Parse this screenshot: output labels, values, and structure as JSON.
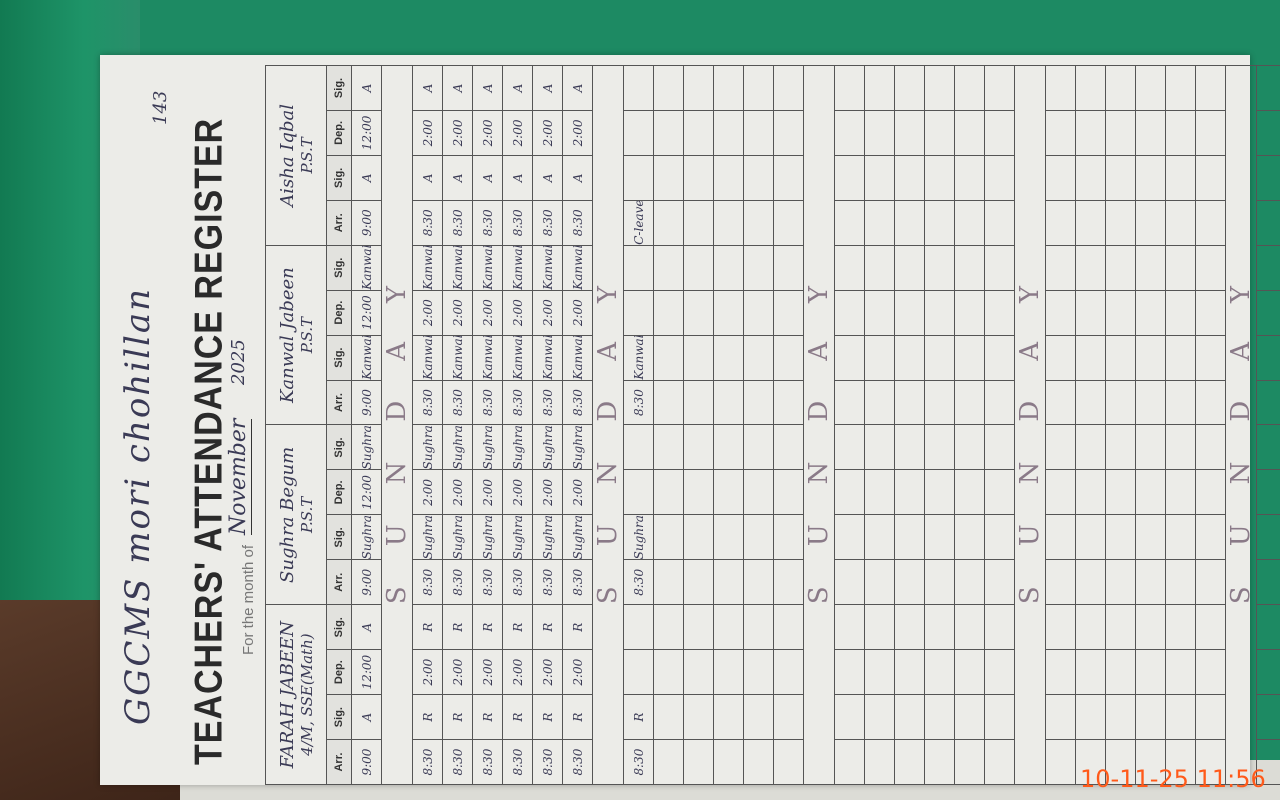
{
  "register": {
    "school": "GGCMS mori chohillan",
    "title": "TEACHERS' ATTENDANCE REGISTER",
    "month_label": "For the month of",
    "month": "November",
    "year": "2025",
    "page_number": "143",
    "column_headers": [
      "Arr.",
      "Sig.",
      "Dep.",
      "Sig."
    ],
    "teachers": [
      {
        "name": "FARAH JABEEN",
        "designation": "4/M, SSE(Math)"
      },
      {
        "name": "Sughra Begum",
        "designation": "P.S.T"
      },
      {
        "name": "Kanwal Jabeen",
        "designation": "P.S.T"
      },
      {
        "name": "Aisha Iqbal",
        "designation": "P.S.T"
      }
    ],
    "rows": [
      {
        "cells": [
          "9:00",
          "A",
          "12:00",
          "A",
          "9:00",
          "Sughra",
          "12:00",
          "Sughra",
          "9:00",
          "Kanwal",
          "12:00",
          "Kanwal",
          "9:00",
          "A",
          "12:00",
          "A"
        ]
      },
      {
        "sunday": "SUNDAY"
      },
      {
        "cells": [
          "8:30",
          "R",
          "2:00",
          "R",
          "8:30",
          "Sughra",
          "2:00",
          "Sughra",
          "8:30",
          "Kanwal",
          "2:00",
          "Kanwal",
          "8:30",
          "A",
          "2:00",
          "A"
        ]
      },
      {
        "cells": [
          "8:30",
          "R",
          "2:00",
          "R",
          "8:30",
          "Sughra",
          "2:00",
          "Sughra",
          "8:30",
          "Kanwal",
          "2:00",
          "Kanwal",
          "8:30",
          "A",
          "2:00",
          "A"
        ]
      },
      {
        "cells": [
          "8:30",
          "R",
          "2:00",
          "R",
          "8:30",
          "Sughra",
          "2:00",
          "Sughra",
          "8:30",
          "Kanwal",
          "2:00",
          "Kanwal",
          "8:30",
          "A",
          "2:00",
          "A"
        ]
      },
      {
        "cells": [
          "8:30",
          "R",
          "2:00",
          "R",
          "8:30",
          "Sughra",
          "2:00",
          "Sughra",
          "8:30",
          "Kanwal",
          "2:00",
          "Kanwal",
          "8:30",
          "A",
          "2:00",
          "A"
        ]
      },
      {
        "cells": [
          "8:30",
          "R",
          "2:00",
          "R",
          "8:30",
          "Sughra",
          "2:00",
          "Sughra",
          "8:30",
          "Kanwal",
          "2:00",
          "Kanwal",
          "8:30",
          "A",
          "2:00",
          "A"
        ]
      },
      {
        "cells": [
          "8:30",
          "R",
          "2:00",
          "R",
          "8:30",
          "Sughra",
          "2:00",
          "Sughra",
          "8:30",
          "Kanwal",
          "2:00",
          "Kanwal",
          "8:30",
          "A",
          "2:00",
          "A"
        ]
      },
      {
        "sunday": "SUNDAY"
      },
      {
        "cells": [
          "8:30",
          "R",
          "",
          "",
          "8:30",
          "Sughra",
          "",
          "",
          "8:30",
          "Kanwal",
          "",
          "",
          "C-leave",
          "",
          "",
          ""
        ]
      },
      {},
      {},
      {},
      {},
      {},
      {
        "sunday": "SUNDAY"
      },
      {},
      {},
      {},
      {},
      {},
      {},
      {
        "sunday": "SUNDAY"
      },
      {},
      {},
      {},
      {},
      {},
      {},
      {
        "sunday": "SUNDAY"
      },
      {}
    ]
  },
  "photo_timestamp": "10-11-25  11:56"
}
